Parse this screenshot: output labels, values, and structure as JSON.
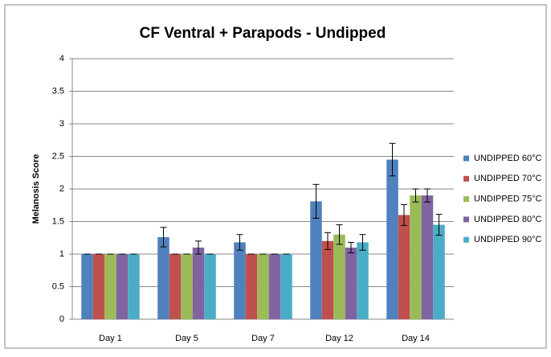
{
  "chart_data": {
    "type": "bar",
    "title": "CF Ventral + Parapods - Undipped",
    "ylabel": "Melanosis Score",
    "categories": [
      "Day 1",
      "Day 5",
      "Day 7",
      "Day 12",
      "Day 14"
    ],
    "series": [
      {
        "name": "UNDIPPED 60°C",
        "color": "#4f81bd",
        "values": [
          1,
          1.26,
          1.18,
          1.81,
          2.45
        ],
        "errors": [
          0,
          0.15,
          0.12,
          0.26,
          0.25
        ]
      },
      {
        "name": "UNDIPPED 70°C",
        "color": "#c0504d",
        "values": [
          1,
          1,
          1,
          1.2,
          1.6
        ],
        "errors": [
          0,
          0,
          0,
          0.13,
          0.16
        ]
      },
      {
        "name": "UNDIPPED 75°C",
        "color": "#9bbb59",
        "values": [
          1,
          1,
          1,
          1.3,
          1.9
        ],
        "errors": [
          0,
          0,
          0,
          0.15,
          0.1
        ]
      },
      {
        "name": "UNDIPPED 80°C",
        "color": "#8064a2",
        "values": [
          1,
          1.1,
          1,
          1.1,
          1.9
        ],
        "errors": [
          0,
          0.1,
          0,
          0.08,
          0.1
        ]
      },
      {
        "name": "UNDIPPED 90°C",
        "color": "#4bacc6",
        "values": [
          1,
          1,
          1,
          1.18,
          1.45
        ],
        "errors": [
          0,
          0,
          0,
          0.12,
          0.16
        ]
      }
    ],
    "ylim": [
      0,
      4
    ],
    "yticks": [
      0,
      0.5,
      1,
      1.5,
      2,
      2.5,
      3,
      3.5,
      4
    ],
    "grid": true,
    "legend": "right"
  }
}
